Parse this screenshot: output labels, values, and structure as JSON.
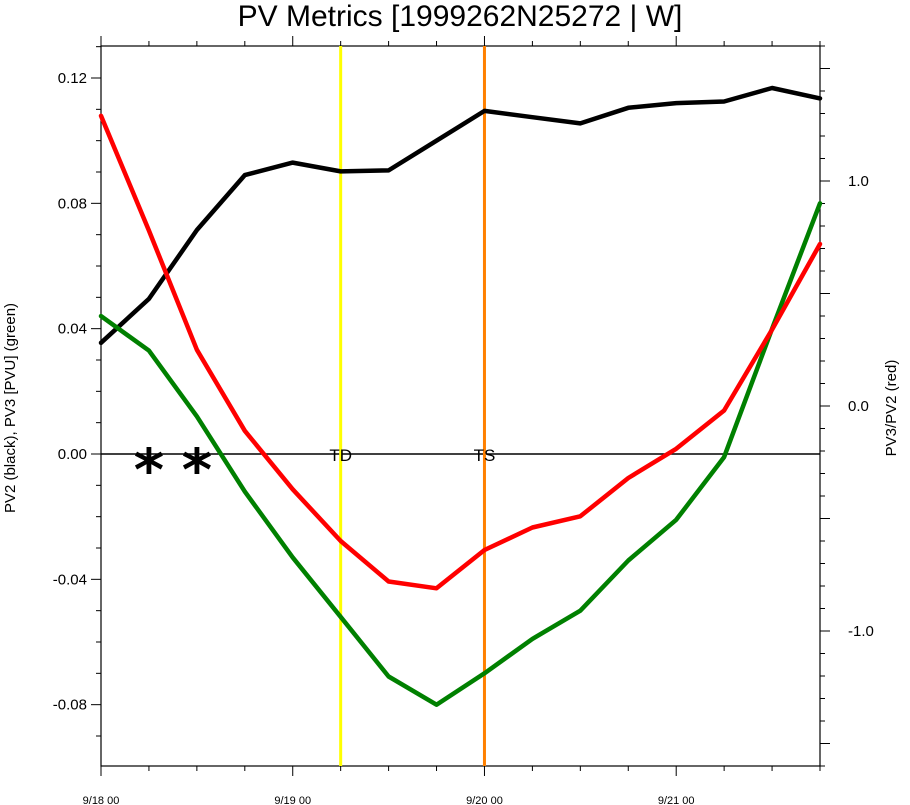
{
  "chart_data": {
    "type": "line",
    "title": "PV Metrics [1999262N25272 | W]",
    "ylabel_left": "PV2 (black), PV3 [PVU] (green)",
    "ylabel_right": "PV3/PV2 (red)",
    "x_ticks": [
      {
        "x": 0,
        "label": "9/18 00"
      },
      {
        "x": 1,
        "label": "9/19 00"
      },
      {
        "x": 2,
        "label": "9/20 00"
      },
      {
        "x": 3,
        "label": "9/21 00"
      }
    ],
    "xlim": [
      0,
      3.75
    ],
    "ylim_left": [
      -0.1,
      0.13
    ],
    "ylim_right": [
      -1.6,
      1.6
    ],
    "y_ticks_left": [
      {
        "v": 0.12,
        "label": "0.12"
      },
      {
        "v": 0.08,
        "label": "0.08"
      },
      {
        "v": 0.04,
        "label": "0.04"
      },
      {
        "v": 0.0,
        "label": "0.00"
      },
      {
        "v": -0.04,
        "label": "-0.04"
      },
      {
        "v": -0.08,
        "label": "-0.08"
      }
    ],
    "y_ticks_right": [
      {
        "v": 1.0,
        "label": "1.0"
      },
      {
        "v": 0.0,
        "label": "0.0"
      },
      {
        "v": -1.0,
        "label": "-1.0"
      }
    ],
    "x": [
      0,
      0.25,
      0.5,
      0.75,
      1.0,
      1.25,
      1.5,
      1.75,
      2.0,
      2.25,
      2.5,
      2.75,
      3.0,
      3.25,
      3.5,
      3.75
    ],
    "series": [
      {
        "key": "pv2",
        "axis": "left",
        "color": "#000000",
        "values": [
          0.0355,
          0.0495,
          0.0715,
          0.089,
          0.093,
          0.0902,
          0.0905,
          0.1,
          0.1095,
          0.1075,
          0.1055,
          0.1105,
          0.112,
          0.1125,
          0.1168,
          0.1135
        ]
      },
      {
        "key": "pv3",
        "axis": "left",
        "color": "#008000",
        "values": [
          0.044,
          0.033,
          0.012,
          -0.012,
          -0.033,
          -0.052,
          -0.071,
          -0.08,
          -0.07,
          -0.059,
          -0.05,
          -0.034,
          -0.021,
          -0.001,
          0.04,
          0.08
        ]
      },
      {
        "key": "ratio",
        "axis": "right",
        "color": "#ff0000",
        "values": [
          1.29,
          0.78,
          0.25,
          -0.11,
          -0.37,
          -0.6,
          -0.78,
          -0.81,
          -0.64,
          -0.54,
          -0.49,
          -0.32,
          -0.19,
          -0.02,
          0.34,
          0.72
        ]
      }
    ],
    "vlines": [
      {
        "x": 1.25,
        "color": "#ffff00"
      },
      {
        "x": 2.0,
        "color": "#ff8000"
      }
    ],
    "hline_left": 0.0,
    "annotations": [
      {
        "x": 1.25,
        "label": "TD"
      },
      {
        "x": 2.0,
        "label": "TS"
      }
    ],
    "markers": [
      {
        "x": 0.25,
        "y": 0.0,
        "symbol": "*"
      },
      {
        "x": 0.5,
        "y": 0.0,
        "symbol": "*"
      }
    ]
  }
}
